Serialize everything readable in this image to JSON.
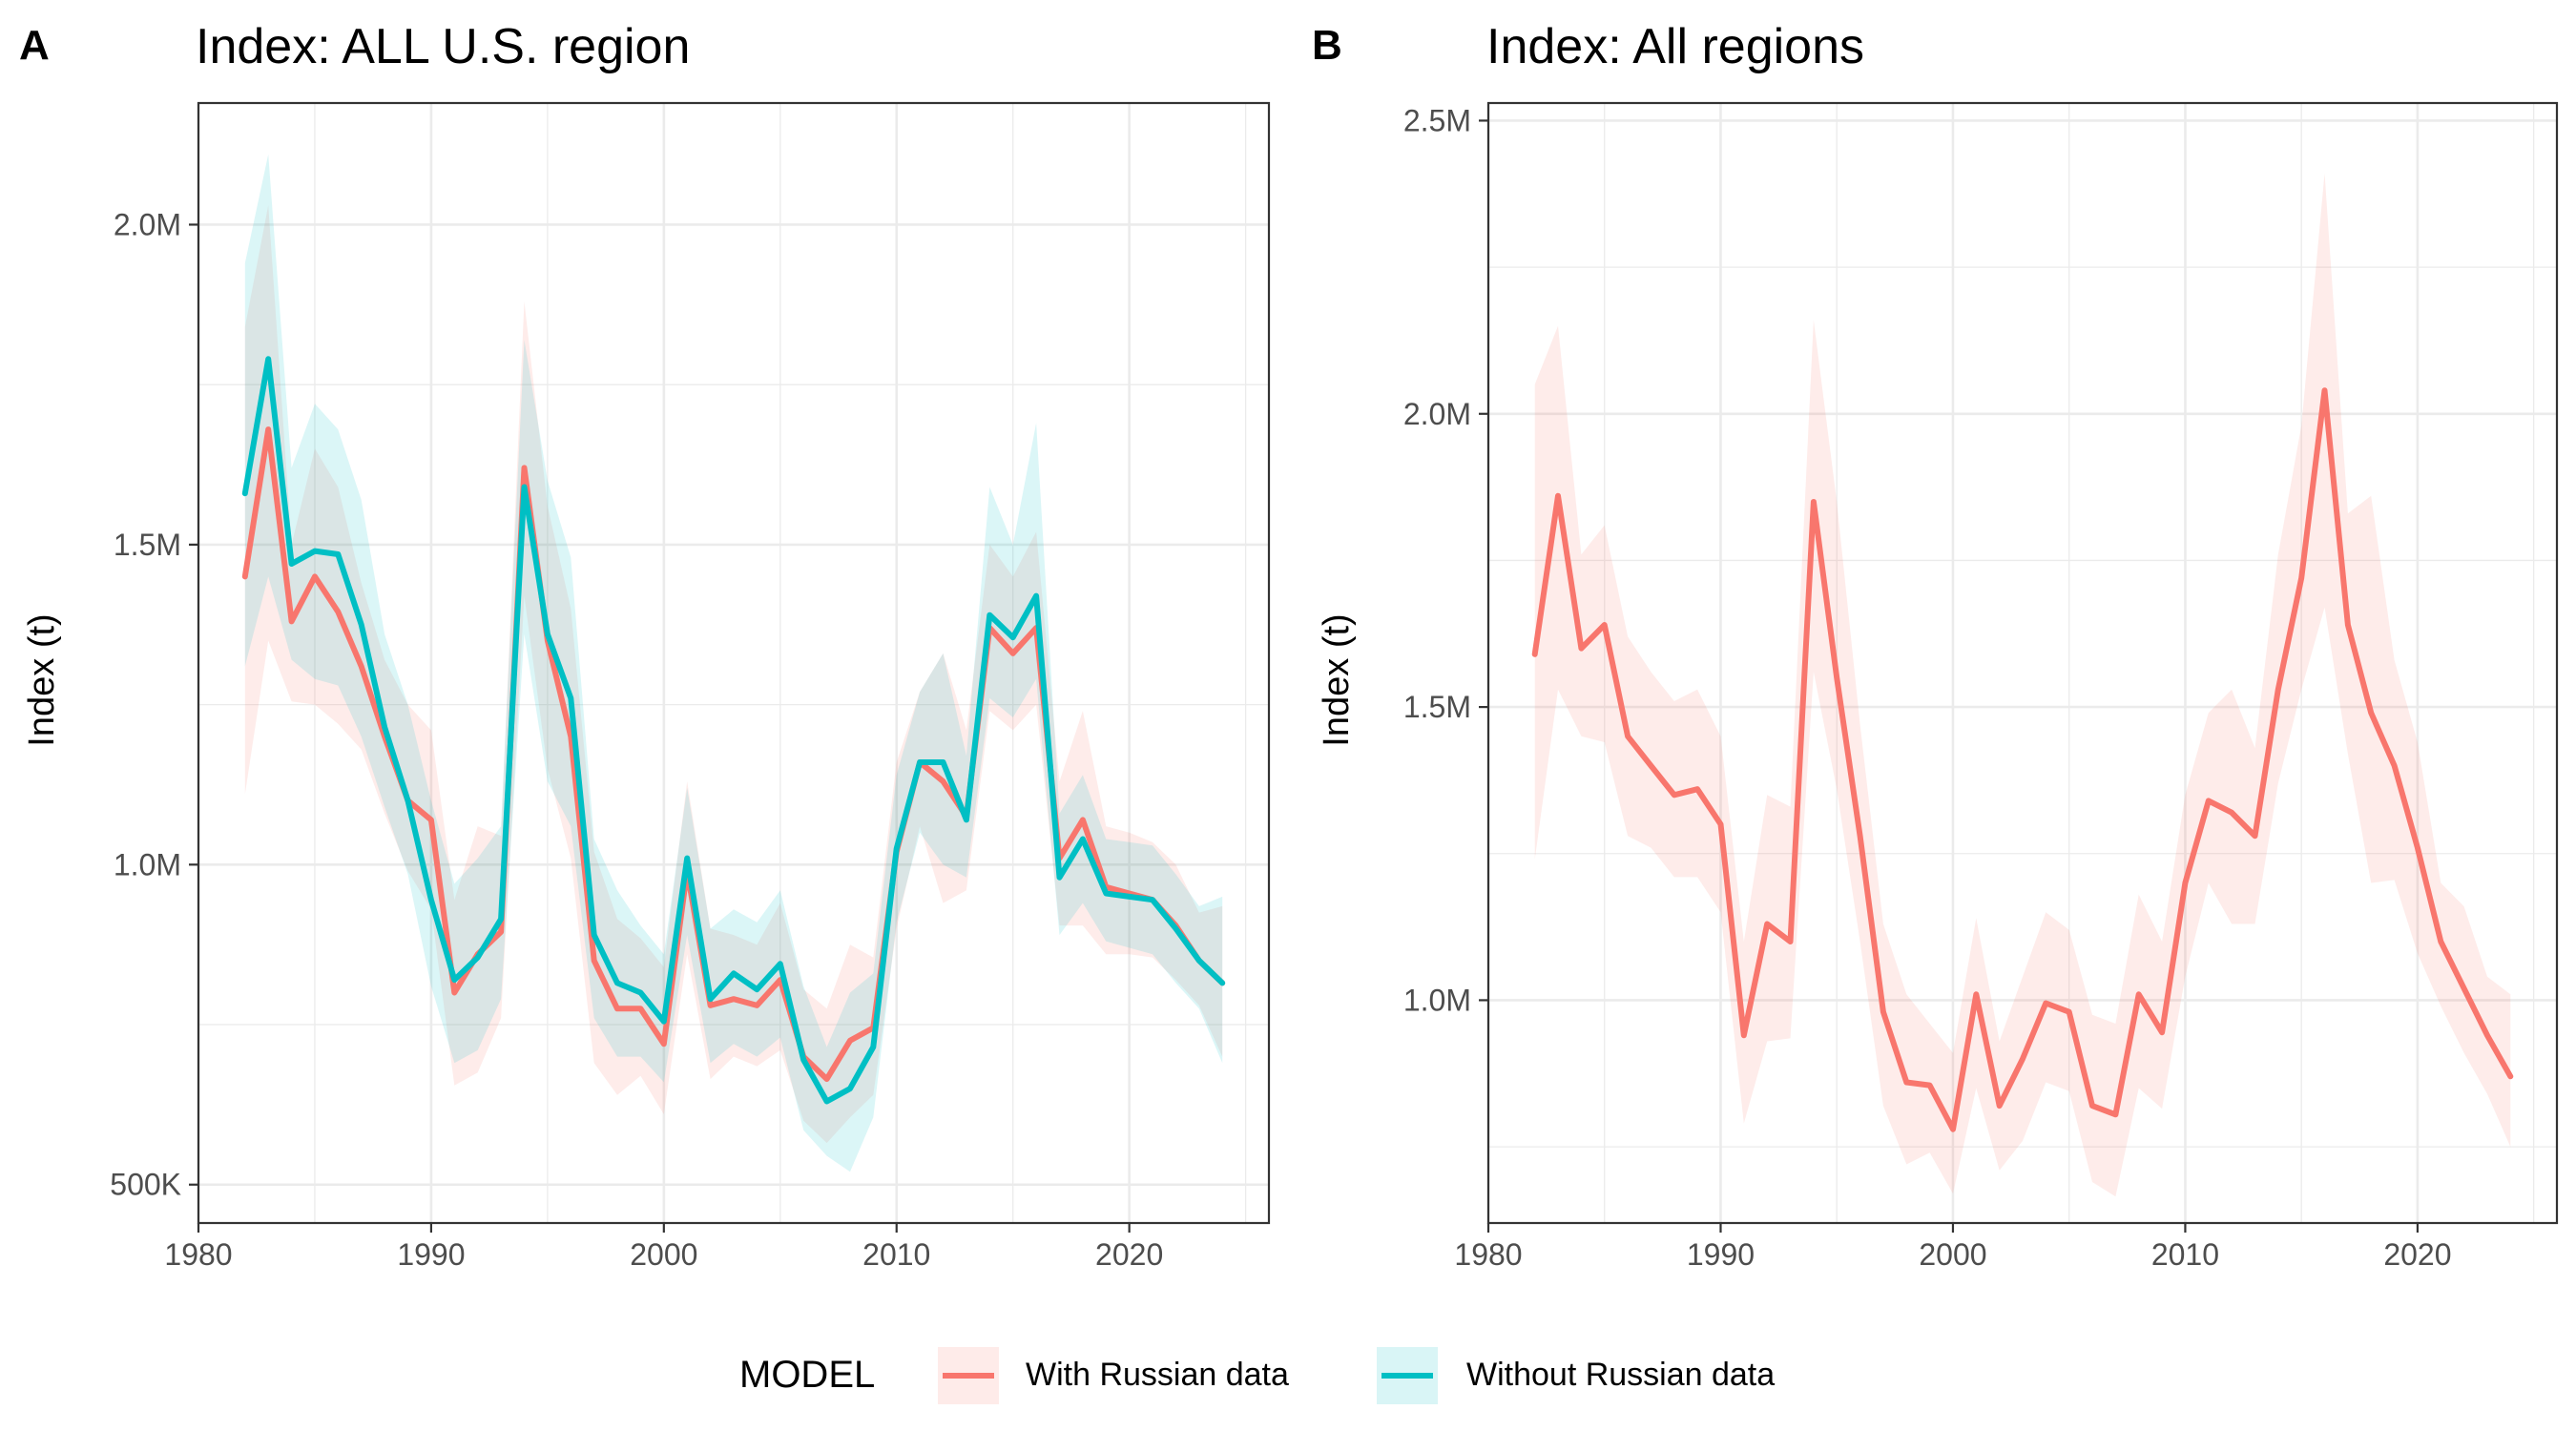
{
  "legend": {
    "title": "MODEL",
    "entries": [
      {
        "label": "With Russian data",
        "color": "#F8766D"
      },
      {
        "label": "Without Russian data",
        "color": "#00BFC4"
      }
    ]
  },
  "chart_data": [
    {
      "type": "line",
      "panel_letter": "A",
      "title": "Index: ALL U.S. region",
      "xlabel": "",
      "ylabel": "Index (t)",
      "xlim": [
        1980,
        2026
      ],
      "ylim": [
        440000,
        2190000
      ],
      "x_ticks": [
        1980,
        1990,
        2000,
        2010,
        2020
      ],
      "x_tick_labels": [
        "1980",
        "1990",
        "2000",
        "2010",
        "2020"
      ],
      "y_ticks": [
        500000,
        1000000,
        1500000,
        2000000
      ],
      "y_tick_labels": [
        "500K",
        "1.0M",
        "1.5M",
        "2.0M"
      ],
      "grid": true,
      "x": [
        1982,
        1983,
        1984,
        1985,
        1986,
        1987,
        1988,
        1989,
        1990,
        1991,
        1992,
        1993,
        1994,
        1995,
        1996,
        1997,
        1998,
        1999,
        2000,
        2001,
        2002,
        2003,
        2004,
        2005,
        2006,
        2007,
        2008,
        2009,
        2010,
        2011,
        2012,
        2013,
        2014,
        2015,
        2016,
        2017,
        2018,
        2019,
        2020,
        2021,
        2022,
        2023,
        2024
      ],
      "series": [
        {
          "name": "With Russian data",
          "color": "#F8766D",
          "values": [
            1450000,
            1680000,
            1380000,
            1450000,
            1395000,
            1310000,
            1200000,
            1100000,
            1070000,
            800000,
            860000,
            895000,
            1620000,
            1350000,
            1200000,
            850000,
            775000,
            775000,
            720000,
            990000,
            780000,
            790000,
            780000,
            820000,
            700000,
            665000,
            725000,
            745000,
            1020000,
            1160000,
            1130000,
            1075000,
            1370000,
            1330000,
            1370000,
            1010000,
            1070000,
            965000,
            955000,
            945000,
            905000,
            850000,
            815000
          ],
          "lower": [
            1110000,
            1350000,
            1255000,
            1250000,
            1220000,
            1180000,
            1080000,
            990000,
            930000,
            655000,
            675000,
            760000,
            1420000,
            1150000,
            1010000,
            690000,
            640000,
            670000,
            610000,
            860000,
            665000,
            700000,
            685000,
            710000,
            600000,
            565000,
            605000,
            640000,
            900000,
            1060000,
            940000,
            960000,
            1240000,
            1210000,
            1250000,
            905000,
            905000,
            860000,
            860000,
            855000,
            820000,
            780000,
            700000
          ],
          "upper": [
            1840000,
            2030000,
            1500000,
            1650000,
            1590000,
            1440000,
            1320000,
            1250000,
            1210000,
            945000,
            1060000,
            1045000,
            1880000,
            1560000,
            1400000,
            1020000,
            915000,
            885000,
            840000,
            1130000,
            900000,
            890000,
            875000,
            940000,
            805000,
            775000,
            875000,
            855000,
            1160000,
            1270000,
            1330000,
            1210000,
            1500000,
            1450000,
            1520000,
            1130000,
            1240000,
            1060000,
            1050000,
            1035000,
            1000000,
            925000,
            935000
          ]
        },
        {
          "name": "Without Russian data",
          "color": "#00BFC4",
          "values": [
            1580000,
            1790000,
            1470000,
            1490000,
            1485000,
            1375000,
            1215000,
            1100000,
            945000,
            820000,
            855000,
            915000,
            1590000,
            1360000,
            1260000,
            890000,
            815000,
            800000,
            755000,
            1010000,
            790000,
            830000,
            805000,
            845000,
            695000,
            630000,
            650000,
            715000,
            1025000,
            1160000,
            1160000,
            1070000,
            1390000,
            1355000,
            1420000,
            980000,
            1040000,
            955000,
            950000,
            945000,
            900000,
            850000,
            815000
          ],
          "lower": [
            1310000,
            1450000,
            1320000,
            1290000,
            1280000,
            1200000,
            1090000,
            985000,
            810000,
            690000,
            710000,
            790000,
            1360000,
            1130000,
            1060000,
            760000,
            700000,
            700000,
            660000,
            890000,
            690000,
            720000,
            700000,
            730000,
            585000,
            545000,
            520000,
            605000,
            910000,
            1050000,
            1000000,
            980000,
            1260000,
            1230000,
            1290000,
            890000,
            940000,
            880000,
            870000,
            860000,
            815000,
            775000,
            690000
          ],
          "upper": [
            1940000,
            2110000,
            1620000,
            1720000,
            1680000,
            1570000,
            1360000,
            1250000,
            1100000,
            970000,
            1010000,
            1060000,
            1820000,
            1600000,
            1480000,
            1040000,
            960000,
            905000,
            860000,
            1120000,
            900000,
            930000,
            910000,
            960000,
            810000,
            715000,
            800000,
            830000,
            1140000,
            1270000,
            1330000,
            1170000,
            1590000,
            1500000,
            1690000,
            1080000,
            1140000,
            1040000,
            1035000,
            1030000,
            985000,
            935000,
            950000
          ]
        }
      ]
    },
    {
      "type": "line",
      "panel_letter": "B",
      "title": "Index: All regions",
      "xlabel": "",
      "ylabel": "Index (t)",
      "xlim": [
        1980,
        2026
      ],
      "ylim": [
        620000,
        2530000
      ],
      "x_ticks": [
        1980,
        1990,
        2000,
        2010,
        2020
      ],
      "x_tick_labels": [
        "1980",
        "1990",
        "2000",
        "2010",
        "2020"
      ],
      "y_ticks": [
        1000000,
        1500000,
        2000000,
        2500000
      ],
      "y_tick_labels": [
        "1.0M",
        "1.5M",
        "2.0M",
        "2.5M"
      ],
      "grid": true,
      "x": [
        1982,
        1983,
        1984,
        1985,
        1986,
        1987,
        1988,
        1989,
        1990,
        1991,
        1992,
        1993,
        1994,
        1995,
        1996,
        1997,
        1998,
        1999,
        2000,
        2001,
        2002,
        2003,
        2004,
        2005,
        2006,
        2007,
        2008,
        2009,
        2010,
        2011,
        2012,
        2013,
        2014,
        2015,
        2016,
        2017,
        2018,
        2019,
        2020,
        2021,
        2022,
        2023,
        2024
      ],
      "series": [
        {
          "name": "With Russian data",
          "color": "#F8766D",
          "values": [
            1590000,
            1860000,
            1600000,
            1640000,
            1450000,
            1400000,
            1350000,
            1360000,
            1300000,
            940000,
            1130000,
            1100000,
            1850000,
            1550000,
            1280000,
            980000,
            860000,
            855000,
            780000,
            1010000,
            820000,
            900000,
            995000,
            980000,
            820000,
            805000,
            1010000,
            945000,
            1200000,
            1340000,
            1320000,
            1280000,
            1530000,
            1720000,
            2040000,
            1640000,
            1490000,
            1400000,
            1260000,
            1100000,
            1020000,
            940000,
            870000
          ],
          "lower": [
            1240000,
            1530000,
            1450000,
            1440000,
            1280000,
            1260000,
            1210000,
            1210000,
            1150000,
            790000,
            930000,
            935000,
            1560000,
            1360000,
            1100000,
            820000,
            720000,
            740000,
            670000,
            850000,
            710000,
            760000,
            860000,
            845000,
            690000,
            665000,
            850000,
            815000,
            1040000,
            1200000,
            1130000,
            1130000,
            1370000,
            1530000,
            1670000,
            1420000,
            1200000,
            1205000,
            1080000,
            990000,
            910000,
            840000,
            750000
          ],
          "upper": [
            2050000,
            2150000,
            1760000,
            1810000,
            1620000,
            1560000,
            1510000,
            1530000,
            1450000,
            1100000,
            1350000,
            1330000,
            2160000,
            1850000,
            1470000,
            1130000,
            1010000,
            960000,
            910000,
            1140000,
            930000,
            1040000,
            1150000,
            1120000,
            975000,
            960000,
            1180000,
            1100000,
            1350000,
            1490000,
            1530000,
            1430000,
            1760000,
            1980000,
            2410000,
            1830000,
            1860000,
            1580000,
            1440000,
            1200000,
            1160000,
            1040000,
            1010000
          ]
        }
      ]
    }
  ]
}
